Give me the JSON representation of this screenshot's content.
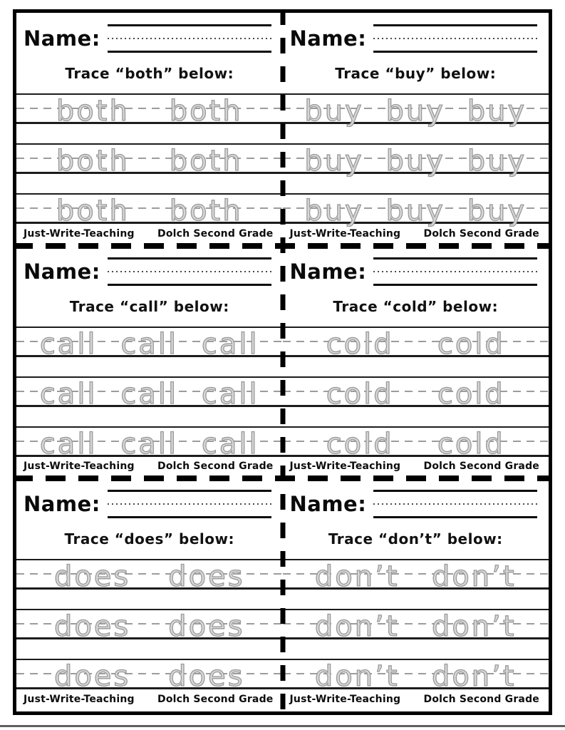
{
  "shared": {
    "name_label": "Name:",
    "footer_left": "Just-Write-Teaching",
    "footer_right": "Dolch Second Grade"
  },
  "panels": [
    {
      "trace_word": "both",
      "title": "Trace “both” below:",
      "rows": [
        [
          "both",
          "both"
        ],
        [
          "both",
          "both"
        ],
        [
          "both",
          "both"
        ]
      ]
    },
    {
      "trace_word": "buy",
      "title": "Trace “buy” below:",
      "rows": [
        [
          "buy",
          "buy",
          "buy"
        ],
        [
          "buy",
          "buy",
          "buy"
        ],
        [
          "buy",
          "buy",
          "buy"
        ]
      ]
    },
    {
      "trace_word": "call",
      "title": "Trace “call” below:",
      "rows": [
        [
          "call",
          "call",
          "call"
        ],
        [
          "call",
          "call",
          "call"
        ],
        [
          "call",
          "call",
          "call"
        ]
      ]
    },
    {
      "trace_word": "cold",
      "title": "Trace “cold” below:",
      "rows": [
        [
          "cold",
          "cold"
        ],
        [
          "cold",
          "cold"
        ],
        [
          "cold",
          "cold"
        ]
      ]
    },
    {
      "trace_word": "does",
      "title": "Trace “does” below:",
      "rows": [
        [
          "does",
          "does"
        ],
        [
          "does",
          "does"
        ],
        [
          "does",
          "does"
        ]
      ]
    },
    {
      "trace_word": "don’t",
      "title": "Trace “don’t” below:",
      "rows": [
        [
          "don’t",
          "don’t"
        ],
        [
          "don’t",
          "don’t"
        ],
        [
          "don’t",
          "don’t"
        ]
      ]
    }
  ],
  "colors": {
    "border": "#000000",
    "trace_gray": "#9a9a9a",
    "midline_gray": "#9c9c9c",
    "text": "#0d0d0d"
  }
}
